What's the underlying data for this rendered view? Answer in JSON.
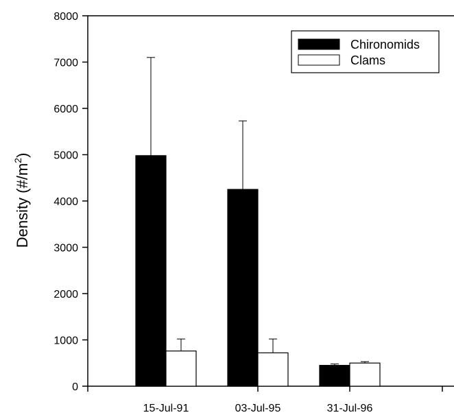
{
  "chart_data": {
    "type": "bar",
    "categories": [
      "15-Jul-91",
      "03-Jul-95",
      "31-Jul-96"
    ],
    "series": [
      {
        "name": "Chironomids",
        "color": "#000000",
        "values": [
          4980,
          4250,
          450
        ],
        "error": [
          2120,
          1480,
          30
        ]
      },
      {
        "name": "Clams",
        "color": "#ffffff",
        "values": [
          760,
          720,
          500
        ],
        "error": [
          260,
          300,
          30
        ]
      }
    ],
    "xlabel": "",
    "ylabel": {
      "main": "Density (#/m",
      "sup": "2",
      "close": ")"
    },
    "ylim": [
      0,
      8000
    ],
    "yticks": [
      "0",
      "1000",
      "2000",
      "3000",
      "4000",
      "5000",
      "6000",
      "7000",
      "8000"
    ],
    "grid": false,
    "legend_position": "top-right"
  }
}
